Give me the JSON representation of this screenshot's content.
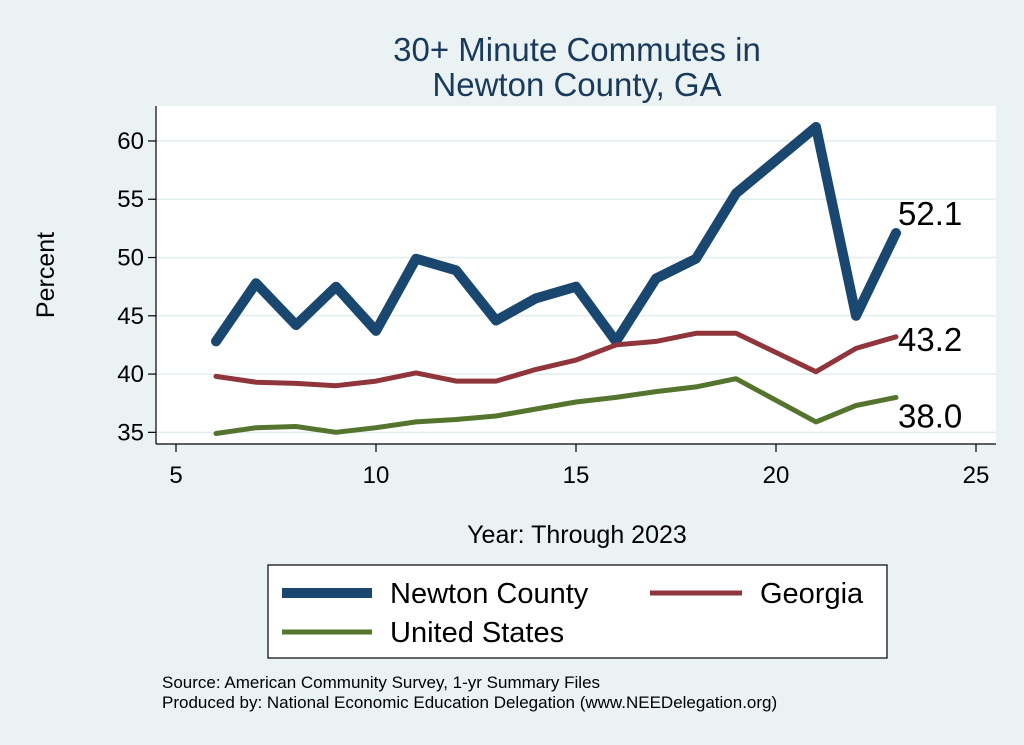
{
  "chart_data": {
    "type": "line",
    "title": [
      "30+ Minute Commutes in",
      "Newton County, GA"
    ],
    "xlabel": "Year: Through 2023",
    "ylabel": "Percent",
    "xlim": [
      4.5,
      25.5
    ],
    "ylim": [
      34,
      63
    ],
    "xticks": [
      5,
      10,
      15,
      20,
      25
    ],
    "yticks": [
      35,
      40,
      45,
      50,
      55,
      60
    ],
    "grid": true,
    "legend_position": "bottom",
    "x": [
      6,
      7,
      8,
      9,
      10,
      11,
      12,
      13,
      14,
      15,
      16,
      17,
      18,
      19,
      21,
      22,
      23
    ],
    "series": [
      {
        "name": "Newton County",
        "color": "#1a476f",
        "values": [
          42.8,
          47.8,
          44.2,
          47.5,
          43.7,
          49.9,
          48.9,
          44.6,
          46.5,
          47.5,
          42.8,
          48.2,
          49.9,
          55.5,
          61.2,
          45.0,
          52.1
        ],
        "end_label": "52.1"
      },
      {
        "name": "Georgia",
        "color": "#90353b",
        "values": [
          39.8,
          39.3,
          39.2,
          39.0,
          39.4,
          40.1,
          39.4,
          39.4,
          40.4,
          41.2,
          42.5,
          42.8,
          43.5,
          43.5,
          40.2,
          42.2,
          43.2
        ],
        "end_label": "43.2"
      },
      {
        "name": "United States",
        "color": "#55752f",
        "values": [
          34.9,
          35.4,
          35.5,
          35.0,
          35.4,
          35.9,
          36.1,
          36.4,
          37.0,
          37.6,
          38.0,
          38.5,
          38.9,
          39.6,
          35.9,
          37.3,
          38.0
        ],
        "end_label": "38.0"
      }
    ]
  },
  "notes": [
    "Source: American Community Survey, 1-yr Summary Files",
    "Produced by: National Economic Education Delegation (www.NEEDelegation.org)"
  ]
}
